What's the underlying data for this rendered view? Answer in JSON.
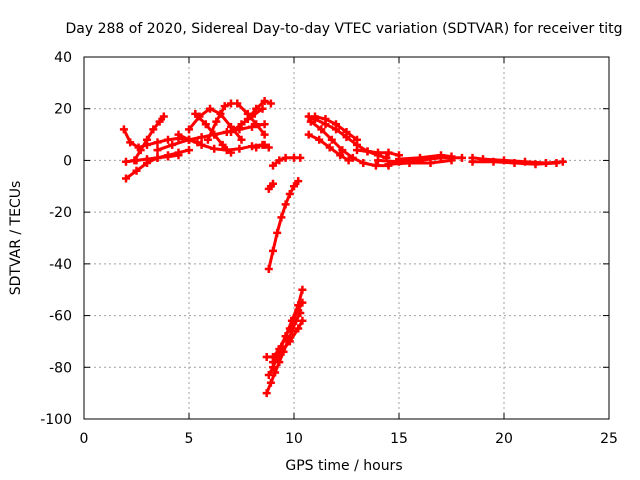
{
  "chart_data": {
    "type": "scatter",
    "title": "Day 288 of 2020, Sidereal Day-to-day VTEC variation (SDTVAR) for receiver titg",
    "xlabel": "GPS time / hours",
    "ylabel": "SDTVAR / TECUs",
    "xlim": [
      0,
      25
    ],
    "ylim": [
      -100,
      40
    ],
    "xticks": [
      0,
      5,
      10,
      15,
      20,
      25
    ],
    "yticks": [
      -100,
      -80,
      -60,
      -40,
      -20,
      0,
      20,
      40
    ],
    "grid": true,
    "legend": "none",
    "color": "#ff0000",
    "series": [
      {
        "x": [
          1.9,
          2.2,
          2.6,
          3.0,
          3.5,
          4.0,
          4.5,
          5.0,
          5.4
        ],
        "y": [
          12,
          7,
          5,
          6,
          7,
          8,
          8.5,
          8,
          7
        ]
      },
      {
        "x": [
          2.0,
          2.5,
          3.0,
          3.5,
          4.0,
          4.5,
          5.0
        ],
        "y": [
          -7,
          -4,
          -1,
          1,
          2,
          3,
          4
        ]
      },
      {
        "x": [
          2.0,
          2.5,
          3.0,
          3.5,
          4.0,
          4.5
        ],
        "y": [
          -0.5,
          0,
          0.5,
          1,
          1.5,
          2
        ]
      },
      {
        "x": [
          2.4,
          2.7,
          3.0,
          3.3,
          3.6,
          3.8
        ],
        "y": [
          0,
          4,
          8,
          12,
          15,
          17
        ]
      },
      {
        "x": [
          3.5,
          4.2,
          5.0,
          5.6,
          6.2,
          6.8,
          7.4,
          8.0,
          8.6
        ],
        "y": [
          4,
          6,
          8,
          9,
          10,
          11,
          12,
          13,
          14
        ]
      },
      {
        "x": [
          4.5,
          5.0,
          5.6,
          6.2,
          6.8,
          7.4,
          8.0,
          8.6
        ],
        "y": [
          10,
          8,
          6,
          4.5,
          4,
          4.5,
          5.5,
          6
        ]
      },
      {
        "x": [
          5.0,
          5.5,
          6.0,
          6.5,
          7.0,
          7.5
        ],
        "y": [
          12,
          17,
          20,
          18,
          13,
          8
        ]
      },
      {
        "x": [
          5.3,
          5.8,
          6.2,
          6.6,
          7.0
        ],
        "y": [
          18,
          14,
          10,
          6,
          3
        ]
      },
      {
        "x": [
          5.9,
          6.3,
          6.7,
          7.0
        ],
        "y": [
          8,
          15,
          21,
          22
        ]
      },
      {
        "x": [
          7.0,
          7.5,
          8.0,
          8.5
        ],
        "y": [
          11,
          14,
          17,
          20
        ]
      },
      {
        "x": [
          7.3,
          7.8,
          8.2,
          8.6
        ],
        "y": [
          22,
          18,
          14,
          10
        ]
      },
      {
        "x": [
          7.8,
          8.2,
          8.6,
          8.9
        ],
        "y": [
          16,
          20,
          23,
          22
        ]
      },
      {
        "x": [
          8.2,
          8.5,
          8.8
        ],
        "y": [
          5,
          6,
          5
        ]
      },
      {
        "x": [
          8.8,
          8.9,
          9.0
        ],
        "y": [
          -11,
          -10,
          -9
        ]
      },
      {
        "x": [
          9.0,
          9.3,
          9.6,
          10.0,
          10.3
        ],
        "y": [
          -2,
          0,
          1,
          1,
          1
        ]
      },
      {
        "x": [
          8.8,
          9.0,
          9.2,
          9.4,
          9.6,
          9.8,
          10.0,
          10.2
        ],
        "y": [
          -42,
          -35,
          -28,
          -22,
          -17,
          -13,
          -10,
          -8
        ]
      },
      {
        "x": [
          8.7,
          8.9,
          9.1,
          9.3,
          9.5,
          9.7,
          9.9,
          10.1,
          10.3
        ],
        "y": [
          -90,
          -86,
          -82,
          -78,
          -74,
          -70,
          -66,
          -62,
          -59
        ]
      },
      {
        "x": [
          8.8,
          9.0,
          9.2,
          9.4,
          9.6,
          9.8,
          10.0,
          10.2,
          10.4
        ],
        "y": [
          -83,
          -80,
          -76,
          -72,
          -68,
          -65,
          -61,
          -58,
          -55
        ]
      },
      {
        "x": [
          8.7,
          9.0,
          9.3,
          9.6,
          9.9,
          10.2,
          10.4
        ],
        "y": [
          -76,
          -76,
          -73,
          -68,
          -62,
          -56,
          -50
        ]
      },
      {
        "x": [
          9.0,
          9.4,
          9.8,
          10.2,
          10.4
        ],
        "y": [
          -78,
          -74,
          -70,
          -65,
          -62
        ]
      },
      {
        "x": [
          10.7,
          11.0,
          11.5,
          12.0,
          12.5,
          13.0,
          13.5,
          14.0,
          14.4
        ],
        "y": [
          17,
          16,
          14,
          12,
          9,
          6,
          3.5,
          2,
          1
        ]
      },
      {
        "x": [
          10.8,
          11.3,
          11.8,
          12.3,
          12.8,
          13.3,
          13.9,
          14.5
        ],
        "y": [
          15,
          12,
          8,
          4,
          1,
          -1,
          -2,
          -2
        ]
      },
      {
        "x": [
          10.7,
          11.2,
          11.7,
          12.2,
          12.6
        ],
        "y": [
          10,
          8,
          5,
          2,
          0
        ]
      },
      {
        "x": [
          11.0,
          11.5,
          12.0,
          12.5,
          13.0
        ],
        "y": [
          17,
          16,
          14,
          11,
          8
        ]
      },
      {
        "x": [
          13.0,
          13.5,
          14.0,
          14.5,
          15.0
        ],
        "y": [
          4,
          3.5,
          3,
          3,
          2
        ]
      },
      {
        "x": [
          14.0,
          15.0,
          16.0,
          17.0,
          18.0
        ],
        "y": [
          0,
          -0.5,
          0,
          1,
          1
        ]
      },
      {
        "x": [
          15.0,
          16.0,
          17.0,
          17.5
        ],
        "y": [
          0.5,
          1,
          2,
          1.5
        ]
      },
      {
        "x": [
          14.5,
          15.5,
          16.5,
          17.5
        ],
        "y": [
          -1.5,
          -1,
          -1,
          0
        ]
      },
      {
        "x": [
          18.5,
          19.0,
          20.0,
          21.0,
          22.0,
          22.8
        ],
        "y": [
          1,
          0.5,
          0,
          -0.5,
          -1,
          -0.5
        ]
      },
      {
        "x": [
          18.5,
          19.5,
          20.5,
          21.5,
          22.5
        ],
        "y": [
          -0.5,
          -0.5,
          -1,
          -1.5,
          -1
        ]
      }
    ]
  }
}
